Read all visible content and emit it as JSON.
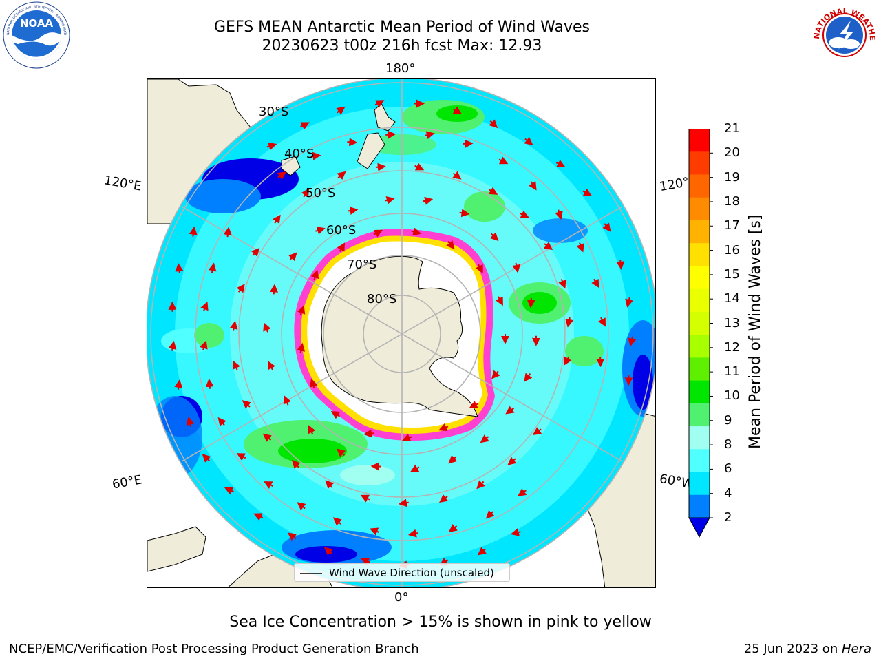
{
  "header": {
    "title_line1": "GEFS MEAN Antarctic Mean Period of Wind Waves",
    "title_line2": "20230623 t00z 216h fcst   Max: 12.93"
  },
  "logos": {
    "left": {
      "text": "NOAA",
      "ring_text": "NATIONAL OCEANIC AND ATMOSPHERIC ADMINISTRATION · U.S. DEPARTMENT OF COMMERCE"
    },
    "right": {
      "ring_text": "NATIONAL WEATHER SERVICE"
    }
  },
  "map": {
    "lon_labels": {
      "top": "180°",
      "bottom": "0°",
      "left_upper": "120°E",
      "left_lower": "60°E",
      "right_upper": "120°W",
      "right_lower": "60°W"
    },
    "lat_labels": [
      "30°S",
      "40°S",
      "50°S",
      "60°S",
      "70°S",
      "80°S"
    ],
    "legend_label": "Wind Wave Direction (unscaled)",
    "colors": {
      "land": "#efecd9",
      "ice": "#ffffff",
      "grid": "#b4b4b4",
      "arrow": "#e00000"
    }
  },
  "colorbar": {
    "label": "Mean Period of Wind Waves [s]",
    "ticks": [
      "21",
      "20",
      "19",
      "18",
      "17",
      "16",
      "15",
      "14",
      "13",
      "12",
      "11",
      "10",
      "9",
      "8",
      "6",
      "4",
      "2"
    ],
    "colors": [
      "#ff0000",
      "#ff3c00",
      "#ff6600",
      "#ff8c00",
      "#ffb300",
      "#ffe000",
      "#ffff00",
      "#eaff00",
      "#d4ff00",
      "#a8ff00",
      "#5ef000",
      "#00e600",
      "#50f070",
      "#a0fff0",
      "#50ffff",
      "#00e6ff",
      "#0080ff",
      "#0000e6"
    ]
  },
  "footer": {
    "subtitle": "Sea Ice Concentration > 15% is shown in pink to yellow",
    "left": "NCEP/EMC/Verification Post Processing Product Generation Branch",
    "right_date": "25 Jun 2023 on ",
    "right_host": "Hera"
  }
}
